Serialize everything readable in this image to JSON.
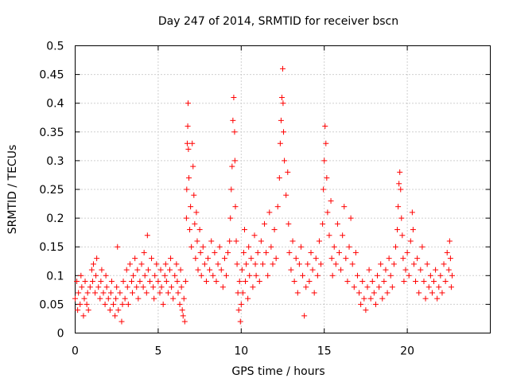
{
  "chart_data": {
    "type": "scatter",
    "title": "Day 247 of 2014, SRMTID for receiver bscn",
    "xlabel": "GPS time / hours",
    "ylabel": "SRMTID / TECUs",
    "xlim": [
      0,
      25
    ],
    "ylim": [
      0,
      0.5
    ],
    "xticks": [
      0,
      5,
      10,
      15,
      20
    ],
    "xtick_labels": [
      "0",
      "5",
      "10",
      "15",
      "20"
    ],
    "yticks": [
      0,
      0.05,
      0.1,
      0.15,
      0.2,
      0.25,
      0.3,
      0.35,
      0.4,
      0.45,
      0.5
    ],
    "ytick_labels": [
      "0",
      "0.05",
      "0.1",
      "0.15",
      "0.2",
      "0.25",
      "0.3",
      "0.35",
      "0.4",
      "0.45",
      "0.5"
    ],
    "grid": true,
    "marker": "+",
    "color": "#ff0000",
    "series": [
      {
        "name": "SRMTID",
        "points": [
          [
            0.0,
            0.06
          ],
          [
            0.1,
            0.09
          ],
          [
            0.15,
            0.04
          ],
          [
            0.2,
            0.07
          ],
          [
            0.3,
            0.05
          ],
          [
            0.35,
            0.1
          ],
          [
            0.4,
            0.08
          ],
          [
            0.5,
            0.03
          ],
          [
            0.55,
            0.06
          ],
          [
            0.6,
            0.09
          ],
          [
            0.7,
            0.05
          ],
          [
            0.75,
            0.07
          ],
          [
            0.8,
            0.04
          ],
          [
            0.9,
            0.08
          ],
          [
            1.0,
            0.11
          ],
          [
            1.05,
            0.09
          ],
          [
            1.1,
            0.12
          ],
          [
            1.2,
            0.07
          ],
          [
            1.25,
            0.1
          ],
          [
            1.3,
            0.13
          ],
          [
            1.4,
            0.08
          ],
          [
            1.5,
            0.06
          ],
          [
            1.55,
            0.09
          ],
          [
            1.6,
            0.11
          ],
          [
            1.7,
            0.07
          ],
          [
            1.8,
            0.05
          ],
          [
            1.85,
            0.1
          ],
          [
            1.9,
            0.08
          ],
          [
            2.0,
            0.06
          ],
          [
            2.1,
            0.04
          ],
          [
            2.15,
            0.07
          ],
          [
            2.2,
            0.09
          ],
          [
            2.3,
            0.05
          ],
          [
            2.4,
            0.03
          ],
          [
            2.45,
            0.06
          ],
          [
            2.5,
            0.08
          ],
          [
            2.55,
            0.15
          ],
          [
            2.6,
            0.04
          ],
          [
            2.7,
            0.07
          ],
          [
            2.8,
            0.02
          ],
          [
            2.85,
            0.05
          ],
          [
            2.9,
            0.09
          ],
          [
            3.0,
            0.06
          ],
          [
            3.1,
            0.11
          ],
          [
            3.15,
            0.08
          ],
          [
            3.2,
            0.05
          ],
          [
            3.3,
            0.12
          ],
          [
            3.4,
            0.09
          ],
          [
            3.45,
            0.07
          ],
          [
            3.5,
            0.1
          ],
          [
            3.6,
            0.13
          ],
          [
            3.7,
            0.08
          ],
          [
            3.75,
            0.11
          ],
          [
            3.8,
            0.06
          ],
          [
            3.9,
            0.09
          ],
          [
            4.0,
            0.12
          ],
          [
            4.1,
            0.08
          ],
          [
            4.15,
            0.14
          ],
          [
            4.2,
            0.1
          ],
          [
            4.3,
            0.07
          ],
          [
            4.35,
            0.17
          ],
          [
            4.4,
            0.11
          ],
          [
            4.5,
            0.09
          ],
          [
            4.6,
            0.13
          ],
          [
            4.7,
            0.08
          ],
          [
            4.75,
            0.06
          ],
          [
            4.8,
            0.1
          ],
          [
            4.9,
            0.12
          ],
          [
            5.0,
            0.09
          ],
          [
            5.1,
            0.07
          ],
          [
            5.15,
            0.11
          ],
          [
            5.2,
            0.08
          ],
          [
            5.3,
            0.05
          ],
          [
            5.4,
            0.1
          ],
          [
            5.45,
            0.12
          ],
          [
            5.5,
            0.09
          ],
          [
            5.6,
            0.07
          ],
          [
            5.7,
            0.11
          ],
          [
            5.75,
            0.13
          ],
          [
            5.8,
            0.08
          ],
          [
            5.9,
            0.06
          ],
          [
            6.0,
            0.1
          ],
          [
            6.1,
            0.12
          ],
          [
            6.15,
            0.09
          ],
          [
            6.2,
            0.07
          ],
          [
            6.3,
            0.05
          ],
          [
            6.35,
            0.11
          ],
          [
            6.4,
            0.08
          ],
          [
            6.45,
            0.04
          ],
          [
            6.5,
            0.03
          ],
          [
            6.55,
            0.06
          ],
          [
            6.6,
            0.02
          ],
          [
            6.65,
            0.09
          ],
          [
            6.7,
            0.2
          ],
          [
            6.72,
            0.25
          ],
          [
            6.75,
            0.33
          ],
          [
            6.78,
            0.36
          ],
          [
            6.8,
            0.4
          ],
          [
            6.82,
            0.32
          ],
          [
            6.85,
            0.27
          ],
          [
            6.9,
            0.18
          ],
          [
            6.95,
            0.22
          ],
          [
            7.0,
            0.15
          ],
          [
            7.05,
            0.33
          ],
          [
            7.1,
            0.29
          ],
          [
            7.15,
            0.24
          ],
          [
            7.2,
            0.19
          ],
          [
            7.25,
            0.13
          ],
          [
            7.3,
            0.21
          ],
          [
            7.35,
            0.16
          ],
          [
            7.4,
            0.11
          ],
          [
            7.5,
            0.18
          ],
          [
            7.55,
            0.14
          ],
          [
            7.6,
            0.1
          ],
          [
            7.7,
            0.15
          ],
          [
            7.8,
            0.12
          ],
          [
            7.9,
            0.09
          ],
          [
            8.0,
            0.13
          ],
          [
            8.1,
            0.11
          ],
          [
            8.2,
            0.16
          ],
          [
            8.3,
            0.1
          ],
          [
            8.4,
            0.14
          ],
          [
            8.5,
            0.09
          ],
          [
            8.6,
            0.12
          ],
          [
            8.7,
            0.15
          ],
          [
            8.8,
            0.11
          ],
          [
            8.9,
            0.08
          ],
          [
            9.0,
            0.13
          ],
          [
            9.1,
            0.1
          ],
          [
            9.2,
            0.14
          ],
          [
            9.3,
            0.16
          ],
          [
            9.35,
            0.2
          ],
          [
            9.4,
            0.25
          ],
          [
            9.45,
            0.29
          ],
          [
            9.5,
            0.37
          ],
          [
            9.55,
            0.41
          ],
          [
            9.6,
            0.35
          ],
          [
            9.62,
            0.3
          ],
          [
            9.65,
            0.22
          ],
          [
            9.7,
            0.16
          ],
          [
            9.75,
            0.12
          ],
          [
            9.8,
            0.07
          ],
          [
            9.85,
            0.04
          ],
          [
            9.9,
            0.09
          ],
          [
            9.95,
            0.02
          ],
          [
            10.0,
            0.05
          ],
          [
            10.05,
            0.11
          ],
          [
            10.1,
            0.07
          ],
          [
            10.15,
            0.14
          ],
          [
            10.2,
            0.18
          ],
          [
            10.25,
            0.09
          ],
          [
            10.3,
            0.12
          ],
          [
            10.4,
            0.06
          ],
          [
            10.45,
            0.15
          ],
          [
            10.5,
            0.1
          ],
          [
            10.6,
            0.13
          ],
          [
            10.7,
            0.08
          ],
          [
            10.8,
            0.17
          ],
          [
            10.85,
            0.12
          ],
          [
            10.9,
            0.1
          ],
          [
            11.0,
            0.14
          ],
          [
            11.1,
            0.09
          ],
          [
            11.2,
            0.16
          ],
          [
            11.3,
            0.12
          ],
          [
            11.4,
            0.19
          ],
          [
            11.5,
            0.14
          ],
          [
            11.6,
            0.1
          ],
          [
            11.7,
            0.21
          ],
          [
            11.8,
            0.15
          ],
          [
            11.9,
            0.12
          ],
          [
            12.0,
            0.18
          ],
          [
            12.1,
            0.13
          ],
          [
            12.2,
            0.22
          ],
          [
            12.3,
            0.27
          ],
          [
            12.35,
            0.33
          ],
          [
            12.4,
            0.37
          ],
          [
            12.45,
            0.41
          ],
          [
            12.5,
            0.46
          ],
          [
            12.52,
            0.4
          ],
          [
            12.55,
            0.35
          ],
          [
            12.6,
            0.3
          ],
          [
            12.7,
            0.24
          ],
          [
            12.8,
            0.28
          ],
          [
            12.85,
            0.19
          ],
          [
            12.9,
            0.14
          ],
          [
            13.0,
            0.11
          ],
          [
            13.1,
            0.16
          ],
          [
            13.2,
            0.09
          ],
          [
            13.3,
            0.13
          ],
          [
            13.4,
            0.07
          ],
          [
            13.5,
            0.12
          ],
          [
            13.6,
            0.15
          ],
          [
            13.7,
            0.1
          ],
          [
            13.8,
            0.03
          ],
          [
            13.9,
            0.08
          ],
          [
            14.0,
            0.12
          ],
          [
            14.1,
            0.09
          ],
          [
            14.2,
            0.14
          ],
          [
            14.3,
            0.11
          ],
          [
            14.4,
            0.07
          ],
          [
            14.5,
            0.13
          ],
          [
            14.6,
            0.1
          ],
          [
            14.7,
            0.16
          ],
          [
            14.8,
            0.12
          ],
          [
            14.9,
            0.19
          ],
          [
            14.95,
            0.25
          ],
          [
            15.0,
            0.3
          ],
          [
            15.05,
            0.36
          ],
          [
            15.1,
            0.33
          ],
          [
            15.15,
            0.27
          ],
          [
            15.2,
            0.21
          ],
          [
            15.3,
            0.17
          ],
          [
            15.4,
            0.23
          ],
          [
            15.45,
            0.13
          ],
          [
            15.5,
            0.1
          ],
          [
            15.6,
            0.15
          ],
          [
            15.7,
            0.12
          ],
          [
            15.8,
            0.19
          ],
          [
            15.9,
            0.14
          ],
          [
            16.0,
            0.11
          ],
          [
            16.1,
            0.17
          ],
          [
            16.2,
            0.22
          ],
          [
            16.3,
            0.13
          ],
          [
            16.4,
            0.09
          ],
          [
            16.5,
            0.15
          ],
          [
            16.6,
            0.2
          ],
          [
            16.7,
            0.12
          ],
          [
            16.8,
            0.08
          ],
          [
            16.9,
            0.14
          ],
          [
            17.0,
            0.1
          ],
          [
            17.1,
            0.07
          ],
          [
            17.2,
            0.05
          ],
          [
            17.3,
            0.09
          ],
          [
            17.4,
            0.06
          ],
          [
            17.5,
            0.04
          ],
          [
            17.6,
            0.08
          ],
          [
            17.7,
            0.11
          ],
          [
            17.8,
            0.06
          ],
          [
            17.9,
            0.09
          ],
          [
            18.0,
            0.07
          ],
          [
            18.1,
            0.05
          ],
          [
            18.2,
            0.1
          ],
          [
            18.3,
            0.08
          ],
          [
            18.4,
            0.12
          ],
          [
            18.5,
            0.06
          ],
          [
            18.6,
            0.09
          ],
          [
            18.7,
            0.11
          ],
          [
            18.8,
            0.07
          ],
          [
            18.9,
            0.13
          ],
          [
            19.0,
            0.1
          ],
          [
            19.1,
            0.08
          ],
          [
            19.2,
            0.12
          ],
          [
            19.3,
            0.15
          ],
          [
            19.4,
            0.18
          ],
          [
            19.45,
            0.22
          ],
          [
            19.5,
            0.26
          ],
          [
            19.55,
            0.28
          ],
          [
            19.6,
            0.25
          ],
          [
            19.65,
            0.2
          ],
          [
            19.7,
            0.17
          ],
          [
            19.75,
            0.13
          ],
          [
            19.8,
            0.09
          ],
          [
            19.9,
            0.11
          ],
          [
            20.0,
            0.14
          ],
          [
            20.1,
            0.1
          ],
          [
            20.2,
            0.16
          ],
          [
            20.3,
            0.21
          ],
          [
            20.35,
            0.18
          ],
          [
            20.4,
            0.12
          ],
          [
            20.5,
            0.09
          ],
          [
            20.6,
            0.13
          ],
          [
            20.7,
            0.07
          ],
          [
            20.8,
            0.11
          ],
          [
            20.9,
            0.15
          ],
          [
            21.0,
            0.09
          ],
          [
            21.1,
            0.06
          ],
          [
            21.2,
            0.12
          ],
          [
            21.3,
            0.08
          ],
          [
            21.4,
            0.1
          ],
          [
            21.5,
            0.07
          ],
          [
            21.6,
            0.09
          ],
          [
            21.7,
            0.11
          ],
          [
            21.8,
            0.06
          ],
          [
            21.9,
            0.08
          ],
          [
            22.0,
            0.1
          ],
          [
            22.1,
            0.07
          ],
          [
            22.2,
            0.12
          ],
          [
            22.3,
            0.09
          ],
          [
            22.4,
            0.14
          ],
          [
            22.5,
            0.11
          ],
          [
            22.55,
            0.16
          ],
          [
            22.6,
            0.13
          ],
          [
            22.65,
            0.08
          ],
          [
            22.7,
            0.1
          ]
        ]
      }
    ]
  }
}
